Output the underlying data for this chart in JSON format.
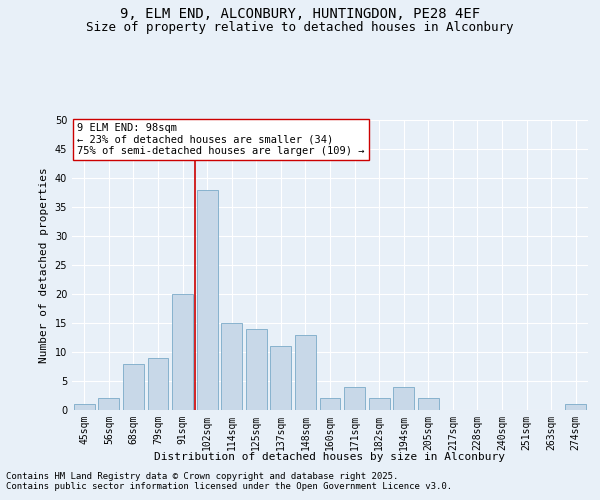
{
  "title_line1": "9, ELM END, ALCONBURY, HUNTINGDON, PE28 4EF",
  "title_line2": "Size of property relative to detached houses in Alconbury",
  "xlabel": "Distribution of detached houses by size in Alconbury",
  "ylabel": "Number of detached properties",
  "categories": [
    "45sqm",
    "56sqm",
    "68sqm",
    "79sqm",
    "91sqm",
    "102sqm",
    "114sqm",
    "125sqm",
    "137sqm",
    "148sqm",
    "160sqm",
    "171sqm",
    "182sqm",
    "194sqm",
    "205sqm",
    "217sqm",
    "228sqm",
    "240sqm",
    "251sqm",
    "263sqm",
    "274sqm"
  ],
  "values": [
    1,
    2,
    8,
    9,
    20,
    38,
    15,
    14,
    11,
    13,
    2,
    4,
    2,
    4,
    2,
    0,
    0,
    0,
    0,
    0,
    1
  ],
  "bar_color": "#c8d8e8",
  "bar_edge_color": "#7aaac8",
  "background_color": "#e8f0f8",
  "grid_color": "#ffffff",
  "vline_x_index": 5,
  "vline_color": "#cc0000",
  "annotation_text": "9 ELM END: 98sqm\n← 23% of detached houses are smaller (34)\n75% of semi-detached houses are larger (109) →",
  "annotation_box_facecolor": "#ffffff",
  "annotation_box_edgecolor": "#cc0000",
  "ylim": [
    0,
    50
  ],
  "yticks": [
    0,
    5,
    10,
    15,
    20,
    25,
    30,
    35,
    40,
    45,
    50
  ],
  "footnote_line1": "Contains HM Land Registry data © Crown copyright and database right 2025.",
  "footnote_line2": "Contains public sector information licensed under the Open Government Licence v3.0.",
  "title_fontsize": 10,
  "subtitle_fontsize": 9,
  "axis_label_fontsize": 8,
  "tick_fontsize": 7,
  "annotation_fontsize": 7.5,
  "footnote_fontsize": 6.5
}
